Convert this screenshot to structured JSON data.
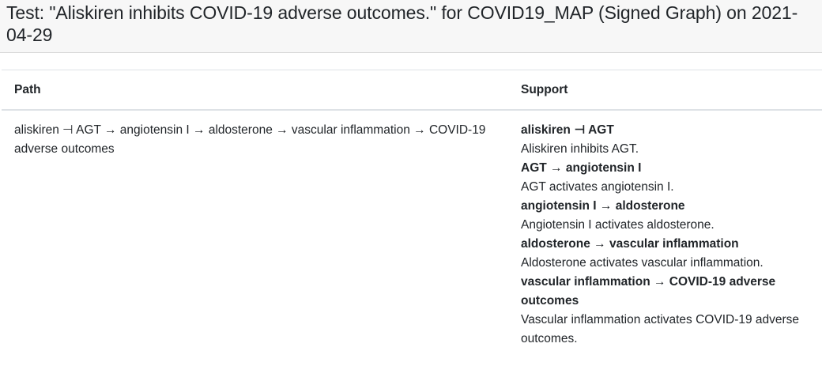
{
  "header": {
    "title": "Test: \"Aliskiren inhibits COVID-19 adverse outcomes.\" for COVID19_MAP (Signed Graph) on 2021-04-29"
  },
  "table": {
    "columns": [
      "Path",
      "Support"
    ],
    "rows": [
      {
        "path": "aliskiren ⊣ AGT → angiotensin I → aldosterone → vascular inflammation → COVID-19 adverse outcomes",
        "support": [
          {
            "edge": "aliskiren ⊣ AGT",
            "statement": "Aliskiren inhibits AGT."
          },
          {
            "edge": "AGT → angiotensin I",
            "statement": "AGT activates angiotensin I."
          },
          {
            "edge": "angiotensin I → aldosterone",
            "statement": "Angiotensin I activates aldosterone."
          },
          {
            "edge": "aldosterone → vascular inflammation",
            "statement": "Aldosterone activates vascular inflammation."
          },
          {
            "edge": "vascular inflammation → COVID-19 adverse outcomes",
            "statement": "Vascular inflammation activates COVID-19 adverse outcomes."
          }
        ]
      }
    ]
  }
}
